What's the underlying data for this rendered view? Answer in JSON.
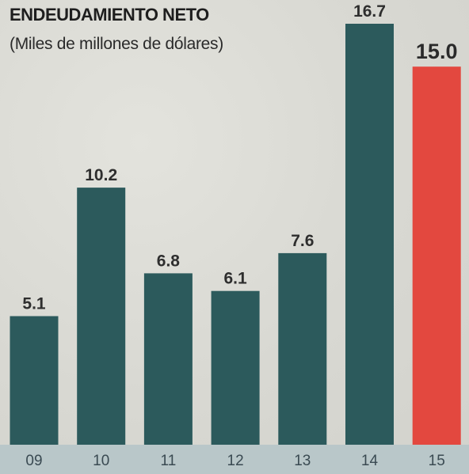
{
  "title": "ENDEUDAMIENTO NETO",
  "subtitle": "(Miles de millones de dólares)",
  "colors": {
    "bar": "#2c5a5c",
    "highlight": "#e3483f",
    "axis_band": "#b9c7c9"
  },
  "chart_data": {
    "type": "bar",
    "title": "ENDEUDAMIENTO NETO",
    "subtitle": "(Miles de millones de dólares)",
    "categories": [
      "09",
      "10",
      "11",
      "12",
      "13",
      "14",
      "15"
    ],
    "values": [
      5.1,
      10.2,
      6.8,
      6.1,
      7.6,
      16.7,
      15.0
    ],
    "value_labels": [
      "5.1",
      "10.2",
      "6.8",
      "6.1",
      "7.6",
      "16.7",
      "15.0"
    ],
    "highlighted_category": "15",
    "ylim": [
      0,
      16.7
    ],
    "grid": false,
    "xlabel": "",
    "ylabel": ""
  }
}
